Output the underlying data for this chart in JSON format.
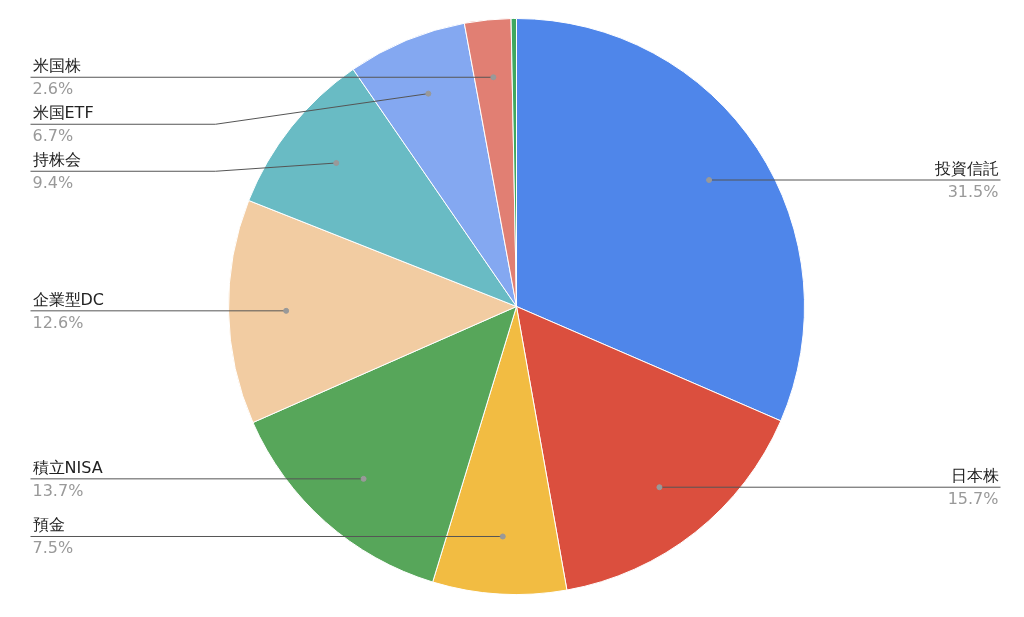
{
  "chart_data": {
    "type": "pie",
    "categories": [
      "投資信託",
      "日本株",
      "預金",
      "積立NISA",
      "企業型DC",
      "持株会",
      "米国ETF",
      "米国株",
      null
    ],
    "values": [
      31.5,
      15.7,
      7.5,
      13.7,
      12.6,
      9.4,
      6.7,
      2.6,
      0.3
    ],
    "colors": [
      "#4f86ea",
      "#db4f3e",
      "#f2bc42",
      "#57a65a",
      "#f2cca2",
      "#69bbc4",
      "#84a8f1",
      "#e17f73",
      "#3fa860"
    ],
    "value_labels": [
      "31.5%",
      "15.7%",
      "7.5%",
      "13.7%",
      "12.6%",
      "9.4%",
      "6.7%",
      "2.6%",
      null
    ]
  }
}
